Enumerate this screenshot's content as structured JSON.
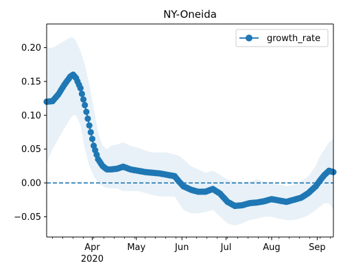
{
  "chart_data": {
    "type": "line",
    "title": "NY-Oneida",
    "xlabel": "",
    "ylabel": "",
    "x_range": [
      "2020-03-01",
      "2020-09-12"
    ],
    "ylim": [
      -0.08,
      0.235
    ],
    "grid": false,
    "legend": {
      "placement": "top-right",
      "entries": [
        "growth_rate"
      ]
    },
    "x_ticks": [
      {
        "date": "2020-04-01",
        "label": "Apr",
        "sublabel": "2020"
      },
      {
        "date": "2020-05-01",
        "label": "May"
      },
      {
        "date": "2020-06-01",
        "label": "Jun"
      },
      {
        "date": "2020-07-01",
        "label": "Jul"
      },
      {
        "date": "2020-08-01",
        "label": "Aug"
      },
      {
        "date": "2020-09-01",
        "label": "Sep"
      }
    ],
    "y_ticks": [
      -0.05,
      0.0,
      0.05,
      0.1,
      0.15,
      0.2
    ],
    "y_tick_labels": [
      "−0.05",
      "0.00",
      "0.05",
      "0.10",
      "0.15",
      "0.20"
    ],
    "reference_line": {
      "y": 0.0,
      "style": "dashed"
    },
    "series": [
      {
        "name": "growth_rate",
        "color": "#1f77b4",
        "marker": "circle",
        "x": [
          "2020-03-01",
          "2020-03-05",
          "2020-03-09",
          "2020-03-13",
          "2020-03-17",
          "2020-03-19",
          "2020-03-21",
          "2020-03-24",
          "2020-03-27",
          "2020-03-30",
          "2020-04-02",
          "2020-04-05",
          "2020-04-08",
          "2020-04-11",
          "2020-04-14",
          "2020-04-18",
          "2020-04-22",
          "2020-04-27",
          "2020-05-02",
          "2020-05-07",
          "2020-05-12",
          "2020-05-17",
          "2020-05-22",
          "2020-05-27",
          "2020-05-30",
          "2020-06-02",
          "2020-06-07",
          "2020-06-12",
          "2020-06-17",
          "2020-06-22",
          "2020-06-27",
          "2020-07-02",
          "2020-07-07",
          "2020-07-12",
          "2020-07-17",
          "2020-07-22",
          "2020-07-27",
          "2020-08-01",
          "2020-08-06",
          "2020-08-11",
          "2020-08-16",
          "2020-08-21",
          "2020-08-26",
          "2020-08-31",
          "2020-09-03",
          "2020-09-06",
          "2020-09-09",
          "2020-09-12"
        ],
        "y": [
          0.12,
          0.121,
          0.131,
          0.145,
          0.157,
          0.16,
          0.155,
          0.14,
          0.115,
          0.085,
          0.055,
          0.035,
          0.025,
          0.02,
          0.02,
          0.021,
          0.024,
          0.02,
          0.018,
          0.016,
          0.015,
          0.014,
          0.012,
          0.01,
          0.002,
          -0.005,
          -0.01,
          -0.013,
          -0.013,
          -0.009,
          -0.016,
          -0.028,
          -0.034,
          -0.033,
          -0.03,
          -0.029,
          -0.027,
          -0.024,
          -0.026,
          -0.028,
          -0.025,
          -0.022,
          -0.015,
          -0.005,
          0.004,
          0.012,
          0.018,
          0.016
        ],
        "lower": [
          0.03,
          0.05,
          0.065,
          0.08,
          0.095,
          0.1,
          0.1,
          0.085,
          0.05,
          0.025,
          0.01,
          0.0,
          -0.005,
          -0.008,
          -0.008,
          -0.008,
          -0.012,
          -0.012,
          -0.012,
          -0.015,
          -0.018,
          -0.02,
          -0.02,
          -0.02,
          -0.03,
          -0.04,
          -0.045,
          -0.045,
          -0.043,
          -0.04,
          -0.05,
          -0.06,
          -0.063,
          -0.06,
          -0.055,
          -0.053,
          -0.05,
          -0.05,
          -0.053,
          -0.055,
          -0.055,
          -0.052,
          -0.048,
          -0.04,
          -0.035,
          -0.03,
          -0.03,
          -0.04
        ],
        "upper": [
          0.2,
          0.2,
          0.205,
          0.21,
          0.215,
          0.215,
          0.21,
          0.195,
          0.175,
          0.145,
          0.11,
          0.075,
          0.055,
          0.05,
          0.055,
          0.057,
          0.06,
          0.055,
          0.052,
          0.048,
          0.045,
          0.045,
          0.045,
          0.042,
          0.04,
          0.035,
          0.025,
          0.02,
          0.015,
          0.018,
          0.012,
          0.005,
          0.002,
          0.0,
          0.002,
          0.005,
          0.002,
          0.0,
          -0.002,
          -0.005,
          -0.003,
          0.003,
          0.01,
          0.025,
          0.04,
          0.05,
          0.06,
          0.065
        ]
      }
    ]
  }
}
